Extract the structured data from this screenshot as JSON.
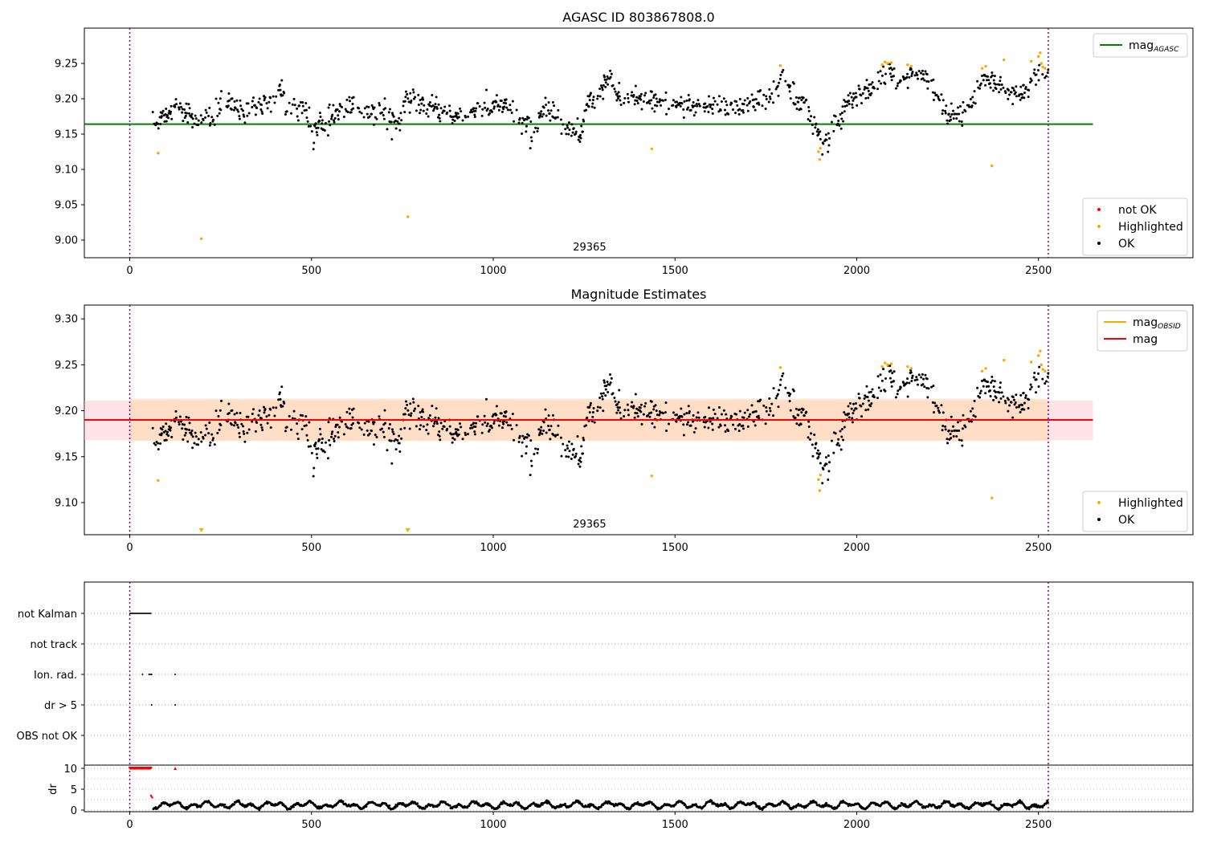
{
  "chart_data": [
    {
      "type": "scatter",
      "title": "AGASC ID 803867808.0",
      "xlim": [
        -125,
        2925
      ],
      "ylim": [
        8.975,
        9.3
      ],
      "xticks": [
        0,
        500,
        1000,
        1500,
        2000,
        2500
      ],
      "yticks": [
        9.0,
        9.05,
        9.1,
        9.15,
        9.2,
        9.25
      ],
      "annotation": "29365",
      "annotation_x": 1265,
      "vlines": [
        0,
        2527
      ],
      "hline": {
        "value": 9.164,
        "xmin": -125,
        "xmax": 2650,
        "color": "#008000",
        "name": "mag_AGASC"
      },
      "legend_top": {
        "placement": "upper right",
        "entries": [
          {
            "label": "mag",
            "sub": "AGASC",
            "color": "#008000"
          }
        ]
      },
      "legend_bottom": {
        "placement": "lower right",
        "entries": [
          {
            "label": "not OK",
            "color": "#ff0000"
          },
          {
            "label": "Highlighted",
            "color": "#ffa500"
          },
          {
            "label": "OK",
            "color": "#000000"
          }
        ]
      },
      "highlighted": [
        [
          78,
          9.123
        ],
        [
          197,
          9.002
        ],
        [
          765,
          9.033
        ],
        [
          1436,
          9.129
        ],
        [
          1790,
          9.247
        ],
        [
          1895,
          9.125
        ],
        [
          1898,
          9.114
        ],
        [
          1900,
          9.13
        ],
        [
          2070,
          9.248
        ],
        [
          2078,
          9.252
        ],
        [
          2085,
          9.25
        ],
        [
          2095,
          9.251
        ],
        [
          2140,
          9.248
        ],
        [
          2150,
          9.246
        ],
        [
          2345,
          9.243
        ],
        [
          2355,
          9.246
        ],
        [
          2372,
          9.105
        ],
        [
          2405,
          9.255
        ],
        [
          2480,
          9.253
        ],
        [
          2500,
          9.26
        ],
        [
          2505,
          9.265
        ],
        [
          2508,
          9.25
        ],
        [
          2512,
          9.245
        ],
        [
          2518,
          9.243
        ]
      ]
    },
    {
      "type": "scatter",
      "title": "Magnitude Estimates",
      "xlim": [
        -125,
        2925
      ],
      "ylim": [
        9.065,
        9.315
      ],
      "xticks": [
        0,
        500,
        1000,
        1500,
        2000,
        2500
      ],
      "yticks": [
        9.1,
        9.15,
        9.2,
        9.25,
        9.3
      ],
      "annotation": "29365",
      "annotation_x": 1265,
      "vlines": [
        0,
        2527
      ],
      "mag_line": {
        "value": 9.19,
        "color": "#ff0000",
        "name": "mag"
      },
      "mag_band": {
        "low": 9.168,
        "high": 9.211,
        "xmin": -125,
        "xmax": 2650,
        "color": "#ffc0cb"
      },
      "obsid_line": {
        "value": 9.19,
        "xmin": 0,
        "xmax": 2527,
        "color": "#ffa500",
        "name": "mag_OBSID"
      },
      "obsid_band": {
        "low": 9.167,
        "high": 9.213,
        "xmin": 0,
        "xmax": 2527,
        "color": "#ffdab9"
      },
      "legend_top": {
        "placement": "upper right",
        "entries": [
          {
            "label": "mag",
            "sub": "OBSID",
            "color": "#ffa500"
          },
          {
            "label": "mag",
            "color": "#ff0000"
          }
        ]
      },
      "legend_bottom": {
        "placement": "lower right",
        "entries": [
          {
            "label": "Highlighted",
            "color": "#ffa500"
          },
          {
            "label": "OK",
            "color": "#000000"
          }
        ]
      },
      "highlighted": [
        [
          78,
          9.124
        ],
        [
          1436,
          9.129
        ],
        [
          1790,
          9.247
        ],
        [
          1895,
          9.125
        ],
        [
          1898,
          9.113
        ],
        [
          1900,
          9.13
        ],
        [
          2070,
          9.248
        ],
        [
          2078,
          9.252
        ],
        [
          2085,
          9.25
        ],
        [
          2095,
          9.251
        ],
        [
          2140,
          9.248
        ],
        [
          2150,
          9.246
        ],
        [
          2345,
          9.243
        ],
        [
          2355,
          9.246
        ],
        [
          2372,
          9.105
        ],
        [
          2405,
          9.255
        ],
        [
          2480,
          9.253
        ],
        [
          2500,
          9.26
        ],
        [
          2505,
          9.265
        ],
        [
          2508,
          9.25
        ],
        [
          2512,
          9.245
        ],
        [
          2518,
          9.243
        ]
      ],
      "out_of_range_markers": [
        [
          197,
          "down"
        ],
        [
          765,
          "down"
        ]
      ]
    },
    {
      "type": "scatter",
      "title": "",
      "xlim": [
        -125,
        2925
      ],
      "xticks": [
        0,
        500,
        1000,
        1500,
        2000,
        2500
      ],
      "vlines": [
        0,
        2527
      ],
      "flag_rows": [
        "not Kalman",
        "not track",
        "Ion. rad.",
        "dr > 5",
        "OBS not OK"
      ],
      "flags": {
        "not Kalman": {
          "xmin": 0,
          "xmax": 58
        },
        "not track": {
          "xmin": null,
          "xmax": null
        },
        "Ion. rad.": {
          "points": [
            35,
            53,
            57,
            60,
            125
          ]
        },
        "dr > 5": {
          "points": [
            60,
            125
          ]
        },
        "OBS not OK": {
          "xmin": null,
          "xmax": null
        }
      },
      "dr_axis": {
        "ylabel": "dr",
        "ylim": [
          0,
          10
        ],
        "yticks": [
          0,
          5,
          10
        ]
      },
      "dr_capped": {
        "xmin": 0,
        "xmax": 58,
        "value": 10,
        "extra": [
          [
            125,
            10
          ]
        ],
        "color": "#ff0000"
      },
      "dr_tail": [
        [
          58,
          3.5
        ],
        [
          60,
          3.2
        ],
        [
          62,
          3.0
        ]
      ],
      "dr_baseline": {
        "xmin": 65,
        "xmax": 2527,
        "mean": 1.2,
        "amp": 0.9
      }
    }
  ]
}
